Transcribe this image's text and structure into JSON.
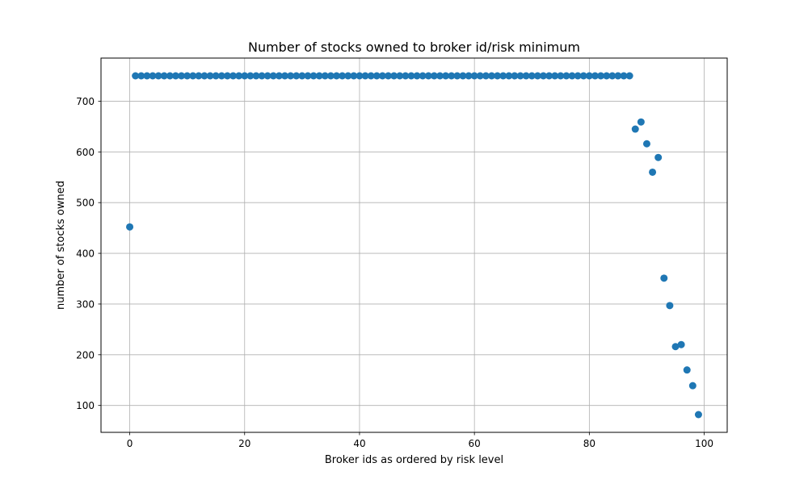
{
  "chart_data": {
    "type": "scatter",
    "title": "Number of stocks owned to broker id/risk minimum",
    "xlabel": "Broker ids as ordered by risk level",
    "ylabel": "number of stocks owned",
    "xlim": [
      -5,
      104
    ],
    "ylim": [
      47,
      785
    ],
    "grid": true,
    "marker_color": "#1f77b4",
    "xticks": [
      0,
      20,
      40,
      60,
      80,
      100
    ],
    "yticks": [
      100,
      200,
      300,
      400,
      500,
      600,
      700
    ],
    "series": [
      {
        "points": [
          [
            0,
            452
          ],
          [
            1,
            750
          ],
          [
            2,
            750
          ],
          [
            3,
            750
          ],
          [
            4,
            750
          ],
          [
            5,
            750
          ],
          [
            6,
            750
          ],
          [
            7,
            750
          ],
          [
            8,
            750
          ],
          [
            9,
            750
          ],
          [
            10,
            750
          ],
          [
            11,
            750
          ],
          [
            12,
            750
          ],
          [
            13,
            750
          ],
          [
            14,
            750
          ],
          [
            15,
            750
          ],
          [
            16,
            750
          ],
          [
            17,
            750
          ],
          [
            18,
            750
          ],
          [
            19,
            750
          ],
          [
            20,
            750
          ],
          [
            21,
            750
          ],
          [
            22,
            750
          ],
          [
            23,
            750
          ],
          [
            24,
            750
          ],
          [
            25,
            750
          ],
          [
            26,
            750
          ],
          [
            27,
            750
          ],
          [
            28,
            750
          ],
          [
            29,
            750
          ],
          [
            30,
            750
          ],
          [
            31,
            750
          ],
          [
            32,
            750
          ],
          [
            33,
            750
          ],
          [
            34,
            750
          ],
          [
            35,
            750
          ],
          [
            36,
            750
          ],
          [
            37,
            750
          ],
          [
            38,
            750
          ],
          [
            39,
            750
          ],
          [
            40,
            750
          ],
          [
            41,
            750
          ],
          [
            42,
            750
          ],
          [
            43,
            750
          ],
          [
            44,
            750
          ],
          [
            45,
            750
          ],
          [
            46,
            750
          ],
          [
            47,
            750
          ],
          [
            48,
            750
          ],
          [
            49,
            750
          ],
          [
            50,
            750
          ],
          [
            51,
            750
          ],
          [
            52,
            750
          ],
          [
            53,
            750
          ],
          [
            54,
            750
          ],
          [
            55,
            750
          ],
          [
            56,
            750
          ],
          [
            57,
            750
          ],
          [
            58,
            750
          ],
          [
            59,
            750
          ],
          [
            60,
            750
          ],
          [
            61,
            750
          ],
          [
            62,
            750
          ],
          [
            63,
            750
          ],
          [
            64,
            750
          ],
          [
            65,
            750
          ],
          [
            66,
            750
          ],
          [
            67,
            750
          ],
          [
            68,
            750
          ],
          [
            69,
            750
          ],
          [
            70,
            750
          ],
          [
            71,
            750
          ],
          [
            72,
            750
          ],
          [
            73,
            750
          ],
          [
            74,
            750
          ],
          [
            75,
            750
          ],
          [
            76,
            750
          ],
          [
            77,
            750
          ],
          [
            78,
            750
          ],
          [
            79,
            750
          ],
          [
            80,
            750
          ],
          [
            81,
            750
          ],
          [
            82,
            750
          ],
          [
            83,
            750
          ],
          [
            84,
            750
          ],
          [
            85,
            750
          ],
          [
            86,
            750
          ],
          [
            87,
            750
          ],
          [
            88,
            645
          ],
          [
            89,
            659
          ],
          [
            90,
            616
          ],
          [
            91,
            560
          ],
          [
            92,
            589
          ],
          [
            93,
            351
          ],
          [
            94,
            297
          ],
          [
            95,
            216
          ],
          [
            96,
            220
          ],
          [
            97,
            170
          ],
          [
            98,
            139
          ],
          [
            99,
            82
          ]
        ]
      }
    ]
  }
}
